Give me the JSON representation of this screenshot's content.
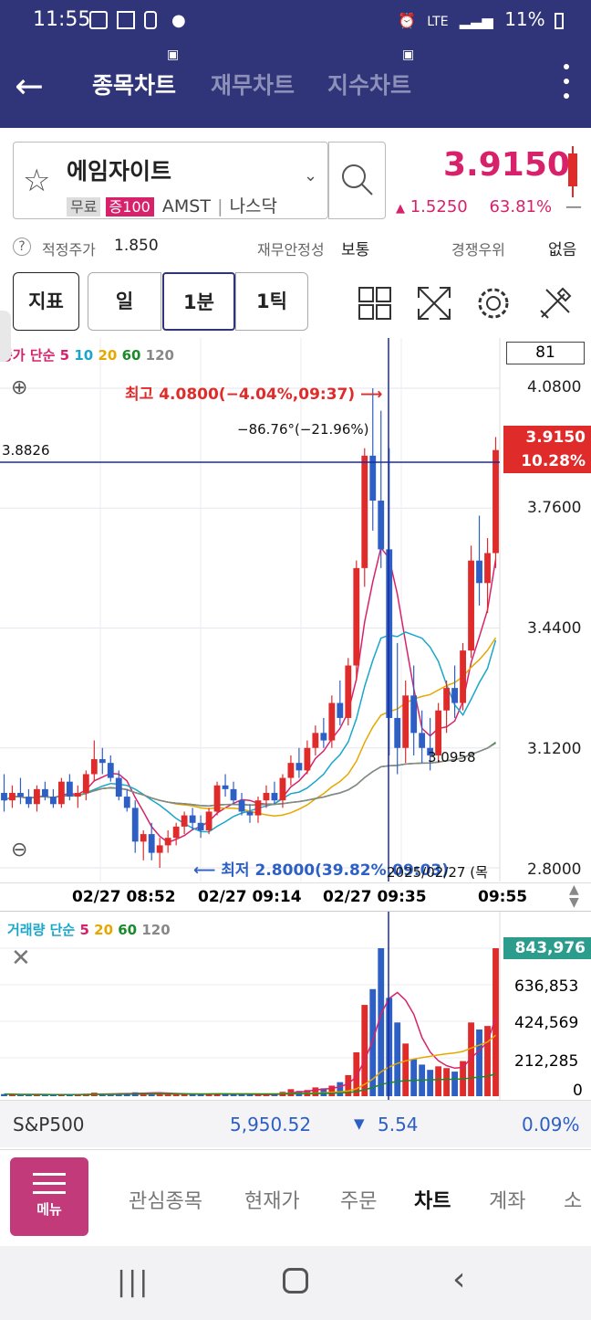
{
  "status": {
    "time": "11:55",
    "battery": "11%",
    "network": "LTE"
  },
  "appbar": {
    "tabs": [
      "종목차트",
      "재무차트",
      "지수차트"
    ]
  },
  "stock": {
    "name": "에임자이트",
    "tags": [
      "무료",
      "증100"
    ],
    "ticker": "AMST",
    "market": "나스닥",
    "price": "3.9150",
    "change": "1.5250",
    "change_pct": "63.81%",
    "up_arrow": "▲"
  },
  "info": {
    "fair_label": "적정주가",
    "fair_value": "1.850",
    "stability_label": "재무안정성",
    "stability_value": "보통",
    "compete_label": "경쟁우위",
    "compete_value": "없음"
  },
  "controls": {
    "indicator": "지표",
    "day": "일",
    "minute": "1분",
    "tick": "1틱"
  },
  "chart": {
    "legend": {
      "label": "종가 단순",
      "p1": "5",
      "p2": "10",
      "p3": "20",
      "p4": "60",
      "p5": "120"
    },
    "period_box": "81",
    "y_labels": [
      "4.0800",
      "3.7600",
      "3.4400",
      "3.1200",
      "2.8000"
    ],
    "high_note": "최고 4.0800(−4.04%,09:37)",
    "low_note": "최저 2.8000(39.82%,09:03)",
    "angle_note": "−86.76°(−21.96%)",
    "crosshair_price": "3.8826",
    "current_price": "3.9150",
    "current_pct": "10.28%",
    "mid_value": "3.0958",
    "date_label": "2025/02/27 (목",
    "x_labels": [
      "02/27 08:52",
      "02/27 09:14",
      "02/27 09:35",
      "09:55"
    ]
  },
  "volume": {
    "legend": {
      "label": "거래량 단순",
      "p1": "5",
      "p2": "20",
      "p3": "60",
      "p4": "120"
    },
    "y_labels": [
      "843,976",
      "636,853",
      "424,569",
      "212,285",
      "0"
    ]
  },
  "index": {
    "name": "S&P500",
    "value": "5,950.52",
    "change": "5.54",
    "pct": "0.09%",
    "arrow": "▼"
  },
  "nav": {
    "menu": "메뉴",
    "items": [
      "관심종목",
      "현재가",
      "주문",
      "차트",
      "계좌",
      "소"
    ]
  },
  "colors": {
    "header": "#303478",
    "up": "#e02b2b",
    "down": "#2d5fc4",
    "magenta": "#d7226b"
  },
  "chart_data": {
    "type": "candlestick",
    "ylim": [
      2.8,
      4.08
    ],
    "candles": [
      [
        3.0,
        3.05,
        2.95,
        2.98
      ],
      [
        2.98,
        3.02,
        2.96,
        3.0
      ],
      [
        3.0,
        3.04,
        2.97,
        2.99
      ],
      [
        2.99,
        3.01,
        2.96,
        2.97
      ],
      [
        2.97,
        3.02,
        2.95,
        3.01
      ],
      [
        3.01,
        3.03,
        2.98,
        2.99
      ],
      [
        2.99,
        3.01,
        2.96,
        2.97
      ],
      [
        2.97,
        3.04,
        2.96,
        3.03
      ],
      [
        3.03,
        3.05,
        2.98,
        2.99
      ],
      [
        2.99,
        3.02,
        2.96,
        3.0
      ],
      [
        3.0,
        3.06,
        2.98,
        3.05
      ],
      [
        3.05,
        3.14,
        3.03,
        3.09
      ],
      [
        3.09,
        3.12,
        3.05,
        3.08
      ],
      [
        3.08,
        3.1,
        3.03,
        3.04
      ],
      [
        3.04,
        3.06,
        2.98,
        2.99
      ],
      [
        2.99,
        3.01,
        2.95,
        2.96
      ],
      [
        2.96,
        2.98,
        2.84,
        2.87
      ],
      [
        2.87,
        2.9,
        2.82,
        2.89
      ],
      [
        2.89,
        2.92,
        2.82,
        2.84
      ],
      [
        2.84,
        2.88,
        2.8,
        2.86
      ],
      [
        2.86,
        2.9,
        2.84,
        2.88
      ],
      [
        2.88,
        2.92,
        2.86,
        2.91
      ],
      [
        2.91,
        2.95,
        2.89,
        2.94
      ],
      [
        2.94,
        2.96,
        2.9,
        2.92
      ],
      [
        2.92,
        2.94,
        2.88,
        2.9
      ],
      [
        2.9,
        2.96,
        2.89,
        2.95
      ],
      [
        2.95,
        3.03,
        2.94,
        3.02
      ],
      [
        3.02,
        3.05,
        2.99,
        3.01
      ],
      [
        3.01,
        3.03,
        2.97,
        2.98
      ],
      [
        2.98,
        3.0,
        2.94,
        2.95
      ],
      [
        2.95,
        2.97,
        2.92,
        2.94
      ],
      [
        2.94,
        2.99,
        2.92,
        2.98
      ],
      [
        2.98,
        3.02,
        2.96,
        3.0
      ],
      [
        3.0,
        3.03,
        2.97,
        2.98
      ],
      [
        2.98,
        3.05,
        2.96,
        3.04
      ],
      [
        3.04,
        3.1,
        3.02,
        3.08
      ],
      [
        3.08,
        3.12,
        3.04,
        3.06
      ],
      [
        3.06,
        3.14,
        3.05,
        3.12
      ],
      [
        3.12,
        3.18,
        3.1,
        3.16
      ],
      [
        3.16,
        3.2,
        3.12,
        3.14
      ],
      [
        3.14,
        3.26,
        3.12,
        3.24
      ],
      [
        3.24,
        3.3,
        3.18,
        3.2
      ],
      [
        3.2,
        3.36,
        3.18,
        3.34
      ],
      [
        3.34,
        3.62,
        3.3,
        3.6
      ],
      [
        3.6,
        3.92,
        3.55,
        3.9
      ],
      [
        3.9,
        4.08,
        3.7,
        3.78
      ],
      [
        3.78,
        4.02,
        3.6,
        3.65
      ],
      [
        3.65,
        3.92,
        3.1,
        3.2
      ],
      [
        3.2,
        3.4,
        3.05,
        3.12
      ],
      [
        3.12,
        3.3,
        3.08,
        3.26
      ],
      [
        3.26,
        3.34,
        3.1,
        3.16
      ],
      [
        3.16,
        3.22,
        3.08,
        3.12
      ],
      [
        3.12,
        3.2,
        3.06,
        3.1
      ],
      [
        3.1,
        3.24,
        3.08,
        3.22
      ],
      [
        3.22,
        3.3,
        3.16,
        3.28
      ],
      [
        3.28,
        3.34,
        3.2,
        3.24
      ],
      [
        3.24,
        3.4,
        3.22,
        3.38
      ],
      [
        3.38,
        3.66,
        3.36,
        3.62
      ],
      [
        3.62,
        3.74,
        3.5,
        3.56
      ],
      [
        3.56,
        3.68,
        3.48,
        3.64
      ],
      [
        3.64,
        3.95,
        3.6,
        3.915
      ]
    ],
    "volumes": [
      12,
      10,
      8,
      9,
      11,
      8,
      7,
      10,
      9,
      8,
      14,
      20,
      12,
      10,
      15,
      18,
      22,
      20,
      19,
      16,
      12,
      10,
      14,
      11,
      9,
      13,
      18,
      12,
      10,
      9,
      8,
      11,
      12,
      10,
      25,
      40,
      30,
      35,
      50,
      45,
      60,
      80,
      120,
      250,
      520,
      610,
      843,
      560,
      420,
      300,
      210,
      180,
      150,
      170,
      160,
      140,
      200,
      420,
      380,
      400,
      843
    ]
  }
}
